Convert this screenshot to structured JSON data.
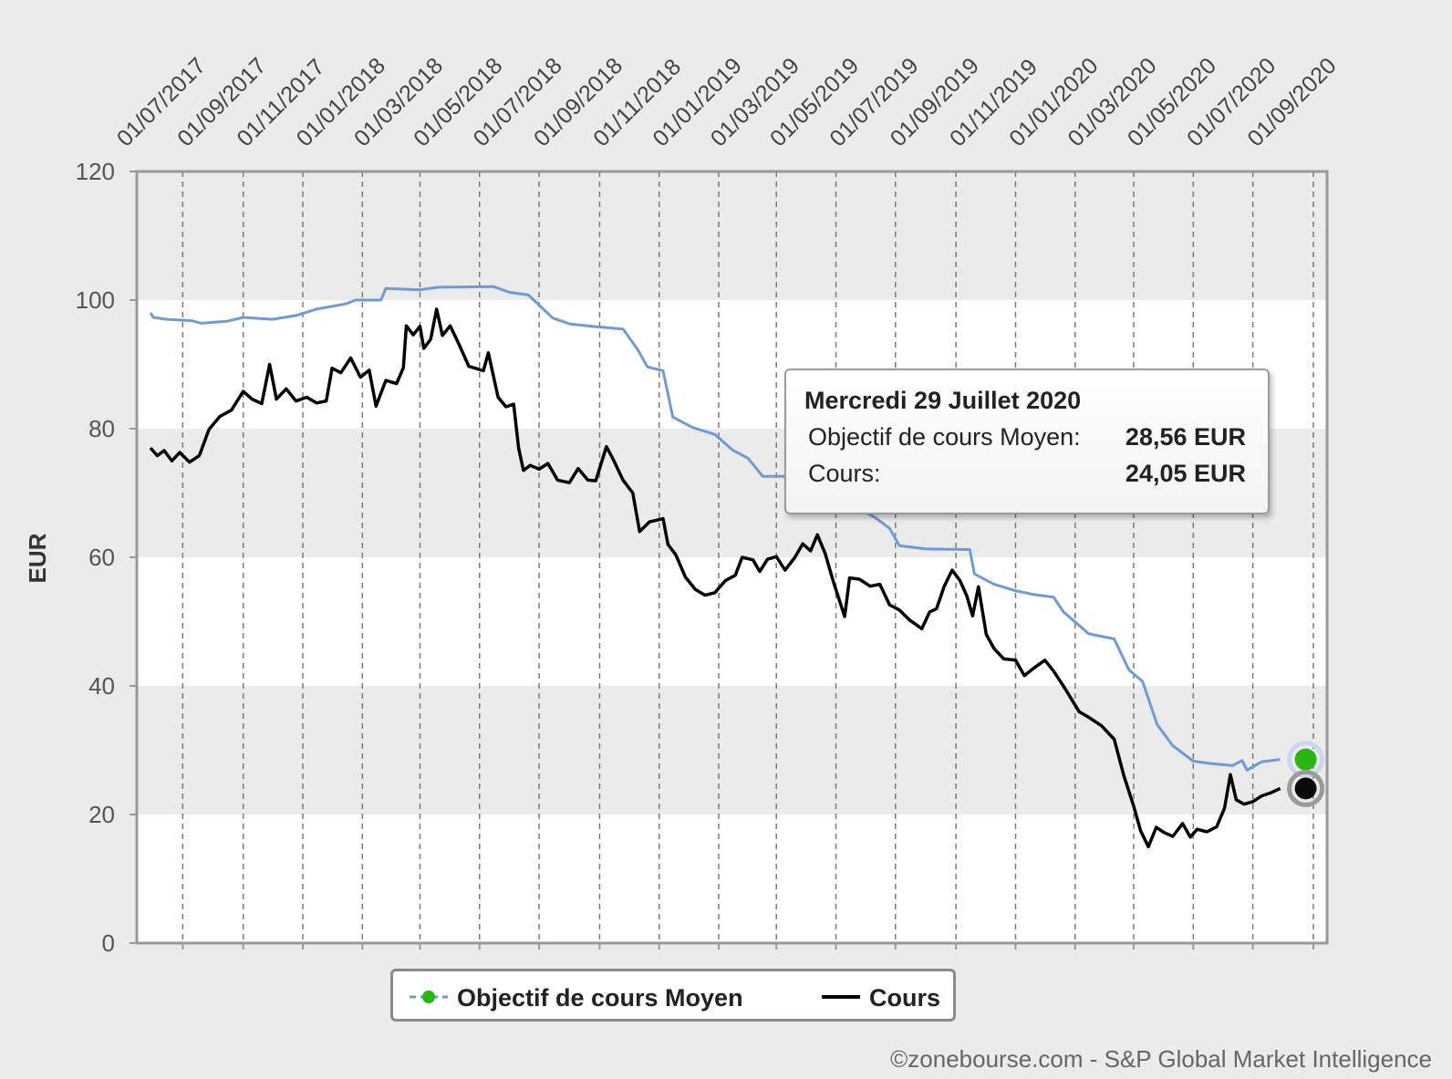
{
  "chart_data": {
    "type": "line",
    "ylabel": "EUR",
    "ylim": [
      0,
      120
    ],
    "y_ticks": [
      "0",
      "20",
      "40",
      "60",
      "80",
      "100",
      "120"
    ],
    "x_range": [
      "2017-05-15",
      "2020-09-15"
    ],
    "x_ticks": [
      "01/07/2017",
      "01/09/2017",
      "01/11/2017",
      "01/01/2018",
      "01/03/2018",
      "01/05/2018",
      "01/07/2018",
      "01/09/2018",
      "01/11/2018",
      "01/01/2019",
      "01/03/2019",
      "01/05/2019",
      "01/07/2019",
      "01/09/2019",
      "01/11/2019",
      "01/01/2020",
      "01/03/2020",
      "01/05/2020",
      "01/07/2020",
      "01/09/2020"
    ],
    "x_tick_dates": [
      "2017-07-01",
      "2017-09-01",
      "2017-11-01",
      "2018-01-01",
      "2018-03-01",
      "2018-05-01",
      "2018-07-01",
      "2018-09-01",
      "2018-11-01",
      "2019-01-01",
      "2019-03-01",
      "2019-05-01",
      "2019-07-01",
      "2019-09-01",
      "2019-11-01",
      "2020-01-01",
      "2020-03-01",
      "2020-05-01",
      "2020-07-01",
      "2020-09-01"
    ],
    "grid": "horizontal bands and vertical dashed lines",
    "legend_position": "bottom-center",
    "series": [
      {
        "name": "Objectif de cours Moyen",
        "color": "#6f9ad8",
        "marker_color": "#2ab516",
        "points": [
          [
            "2017-05-29",
            98.0
          ],
          [
            "2017-06-01",
            97.3
          ],
          [
            "2017-06-15",
            97.0
          ],
          [
            "2017-07-10",
            96.8
          ],
          [
            "2017-07-20",
            96.4
          ],
          [
            "2017-08-15",
            96.7
          ],
          [
            "2017-09-01",
            97.3
          ],
          [
            "2017-10-01",
            97.0
          ],
          [
            "2017-10-25",
            97.6
          ],
          [
            "2017-11-15",
            98.6
          ],
          [
            "2017-12-15",
            99.4
          ],
          [
            "2017-12-25",
            100.0
          ],
          [
            "2018-01-20",
            100.0
          ],
          [
            "2018-01-25",
            101.8
          ],
          [
            "2018-03-01",
            101.6
          ],
          [
            "2018-03-20",
            102.0
          ],
          [
            "2018-05-15",
            102.1
          ],
          [
            "2018-06-01",
            101.2
          ],
          [
            "2018-06-20",
            100.8
          ],
          [
            "2018-07-15",
            97.2
          ],
          [
            "2018-08-01",
            96.3
          ],
          [
            "2018-08-25",
            95.9
          ],
          [
            "2018-09-25",
            95.5
          ],
          [
            "2018-10-10",
            92.3
          ],
          [
            "2018-10-20",
            89.6
          ],
          [
            "2018-11-05",
            89.0
          ],
          [
            "2018-11-15",
            81.8
          ],
          [
            "2018-12-05",
            80.2
          ],
          [
            "2018-12-28",
            79.1
          ],
          [
            "2019-01-15",
            76.7
          ],
          [
            "2019-01-31",
            75.4
          ],
          [
            "2019-02-15",
            72.6
          ],
          [
            "2019-03-10",
            72.6
          ],
          [
            "2019-04-01",
            72.0
          ],
          [
            "2019-05-01",
            70.0
          ],
          [
            "2019-05-25",
            67.5
          ],
          [
            "2019-06-10",
            66.2
          ],
          [
            "2019-06-25",
            64.5
          ],
          [
            "2019-07-05",
            61.8
          ],
          [
            "2019-08-01",
            61.3
          ],
          [
            "2019-09-15",
            61.2
          ],
          [
            "2019-09-20",
            57.4
          ],
          [
            "2019-10-10",
            55.8
          ],
          [
            "2019-11-01",
            54.8
          ],
          [
            "2019-11-20",
            54.2
          ],
          [
            "2019-12-10",
            53.8
          ],
          [
            "2019-12-20",
            51.5
          ],
          [
            "2020-01-15",
            48.1
          ],
          [
            "2020-02-10",
            47.3
          ],
          [
            "2020-02-25",
            42.5
          ],
          [
            "2020-03-10",
            40.7
          ],
          [
            "2020-03-25",
            34.0
          ],
          [
            "2020-04-10",
            30.7
          ],
          [
            "2020-05-01",
            28.3
          ],
          [
            "2020-05-20",
            27.9
          ],
          [
            "2020-06-10",
            27.6
          ],
          [
            "2020-06-20",
            28.4
          ],
          [
            "2020-06-25",
            26.9
          ],
          [
            "2020-07-10",
            28.2
          ],
          [
            "2020-07-29",
            28.56
          ]
        ]
      },
      {
        "name": "Cours",
        "color": "#000000",
        "marker_color": "#0a0a0a",
        "points": [
          [
            "2017-05-29",
            77.0
          ],
          [
            "2017-06-05",
            75.8
          ],
          [
            "2017-06-12",
            76.6
          ],
          [
            "2017-06-20",
            75.0
          ],
          [
            "2017-06-28",
            76.3
          ],
          [
            "2017-07-08",
            74.8
          ],
          [
            "2017-07-18",
            75.8
          ],
          [
            "2017-07-28",
            79.9
          ],
          [
            "2017-08-08",
            81.9
          ],
          [
            "2017-08-20",
            82.9
          ],
          [
            "2017-09-01",
            85.8
          ],
          [
            "2017-09-10",
            84.6
          ],
          [
            "2017-09-20",
            83.9
          ],
          [
            "2017-09-28",
            90.0
          ],
          [
            "2017-10-05",
            84.6
          ],
          [
            "2017-10-15",
            86.2
          ],
          [
            "2017-10-25",
            84.3
          ],
          [
            "2017-11-05",
            84.9
          ],
          [
            "2017-11-15",
            84.0
          ],
          [
            "2017-11-25",
            84.3
          ],
          [
            "2017-12-01",
            89.4
          ],
          [
            "2017-12-10",
            88.7
          ],
          [
            "2017-12-20",
            91.0
          ],
          [
            "2017-12-30",
            88.0
          ],
          [
            "2018-01-08",
            89.1
          ],
          [
            "2018-01-15",
            83.5
          ],
          [
            "2018-01-25",
            87.5
          ],
          [
            "2018-02-05",
            87.0
          ],
          [
            "2018-02-12",
            89.5
          ],
          [
            "2018-02-15",
            96.0
          ],
          [
            "2018-02-22",
            94.6
          ],
          [
            "2018-03-01",
            95.9
          ],
          [
            "2018-03-05",
            92.5
          ],
          [
            "2018-03-12",
            93.9
          ],
          [
            "2018-03-18",
            98.6
          ],
          [
            "2018-03-24",
            94.5
          ],
          [
            "2018-04-01",
            96.0
          ],
          [
            "2018-04-10",
            93.1
          ],
          [
            "2018-04-20",
            89.7
          ],
          [
            "2018-05-05",
            89.0
          ],
          [
            "2018-05-10",
            91.8
          ],
          [
            "2018-05-20",
            84.9
          ],
          [
            "2018-05-28",
            83.4
          ],
          [
            "2018-06-05",
            83.8
          ],
          [
            "2018-06-10",
            77.0
          ],
          [
            "2018-06-15",
            73.5
          ],
          [
            "2018-06-22",
            74.3
          ],
          [
            "2018-07-01",
            73.7
          ],
          [
            "2018-07-10",
            74.6
          ],
          [
            "2018-07-20",
            72.0
          ],
          [
            "2018-08-01",
            71.6
          ],
          [
            "2018-08-10",
            73.8
          ],
          [
            "2018-08-20",
            72.0
          ],
          [
            "2018-08-28",
            71.9
          ],
          [
            "2018-09-08",
            77.2
          ],
          [
            "2018-09-15",
            75.2
          ],
          [
            "2018-09-25",
            72.0
          ],
          [
            "2018-10-05",
            70.0
          ],
          [
            "2018-10-12",
            64.0
          ],
          [
            "2018-10-22",
            65.5
          ],
          [
            "2018-11-05",
            66.0
          ],
          [
            "2018-11-10",
            62.0
          ],
          [
            "2018-11-18",
            60.4
          ],
          [
            "2018-11-28",
            56.9
          ],
          [
            "2018-12-08",
            55.0
          ],
          [
            "2018-12-18",
            54.1
          ],
          [
            "2018-12-28",
            54.5
          ],
          [
            "2019-01-08",
            56.4
          ],
          [
            "2019-01-18",
            57.2
          ],
          [
            "2019-01-25",
            60.0
          ],
          [
            "2019-02-05",
            59.6
          ],
          [
            "2019-02-12",
            57.8
          ],
          [
            "2019-02-20",
            59.7
          ],
          [
            "2019-03-01",
            60.1
          ],
          [
            "2019-03-10",
            58.0
          ],
          [
            "2019-03-20",
            60.0
          ],
          [
            "2019-03-28",
            62.1
          ],
          [
            "2019-04-05",
            61.0
          ],
          [
            "2019-04-12",
            63.5
          ],
          [
            "2019-04-20",
            60.6
          ],
          [
            "2019-04-28",
            56.4
          ],
          [
            "2019-05-10",
            50.8
          ],
          [
            "2019-05-15",
            56.8
          ],
          [
            "2019-05-25",
            56.6
          ],
          [
            "2019-06-05",
            55.5
          ],
          [
            "2019-06-15",
            55.8
          ],
          [
            "2019-06-25",
            52.6
          ],
          [
            "2019-07-05",
            51.8
          ],
          [
            "2019-07-15",
            50.3
          ],
          [
            "2019-07-28",
            48.9
          ],
          [
            "2019-08-05",
            51.5
          ],
          [
            "2019-08-12",
            52.0
          ],
          [
            "2019-08-20",
            55.5
          ],
          [
            "2019-08-28",
            58.0
          ],
          [
            "2019-09-05",
            56.4
          ],
          [
            "2019-09-12",
            54.0
          ],
          [
            "2019-09-18",
            50.9
          ],
          [
            "2019-09-24",
            55.4
          ],
          [
            "2019-10-02",
            48.0
          ],
          [
            "2019-10-10",
            45.8
          ],
          [
            "2019-10-20",
            44.2
          ],
          [
            "2019-11-01",
            44.0
          ],
          [
            "2019-11-10",
            41.6
          ],
          [
            "2019-11-20",
            42.8
          ],
          [
            "2019-12-01",
            44.0
          ],
          [
            "2019-12-10",
            42.3
          ],
          [
            "2019-12-22",
            39.5
          ],
          [
            "2020-01-05",
            36.0
          ],
          [
            "2020-01-15",
            35.1
          ],
          [
            "2020-01-28",
            33.8
          ],
          [
            "2020-02-10",
            31.7
          ],
          [
            "2020-02-20",
            26.0
          ],
          [
            "2020-03-01",
            21.3
          ],
          [
            "2020-03-08",
            17.5
          ],
          [
            "2020-03-16",
            15.0
          ],
          [
            "2020-03-24",
            18.0
          ],
          [
            "2020-04-01",
            17.2
          ],
          [
            "2020-04-10",
            16.6
          ],
          [
            "2020-04-20",
            18.6
          ],
          [
            "2020-04-28",
            16.5
          ],
          [
            "2020-05-05",
            17.7
          ],
          [
            "2020-05-15",
            17.3
          ],
          [
            "2020-05-25",
            18.1
          ],
          [
            "2020-06-02",
            21.0
          ],
          [
            "2020-06-08",
            26.2
          ],
          [
            "2020-06-14",
            22.3
          ],
          [
            "2020-06-22",
            21.6
          ],
          [
            "2020-07-01",
            22.0
          ],
          [
            "2020-07-10",
            22.9
          ],
          [
            "2020-07-20",
            23.4
          ],
          [
            "2020-07-29",
            24.05
          ]
        ]
      }
    ],
    "legend": [
      {
        "label": "Objectif de cours Moyen",
        "style": "dashed-marker"
      },
      {
        "label": "Cours",
        "style": "line"
      }
    ],
    "tooltip": {
      "title": "Mercredi 29 Juillet 2020",
      "rows": [
        {
          "label": "Objectif de cours Moyen:",
          "value": "28,56 EUR"
        },
        {
          "label": "Cours:",
          "value": "24,05 EUR"
        }
      ]
    },
    "credit": "©zonebourse.com - S&P Global Market Intelligence"
  }
}
